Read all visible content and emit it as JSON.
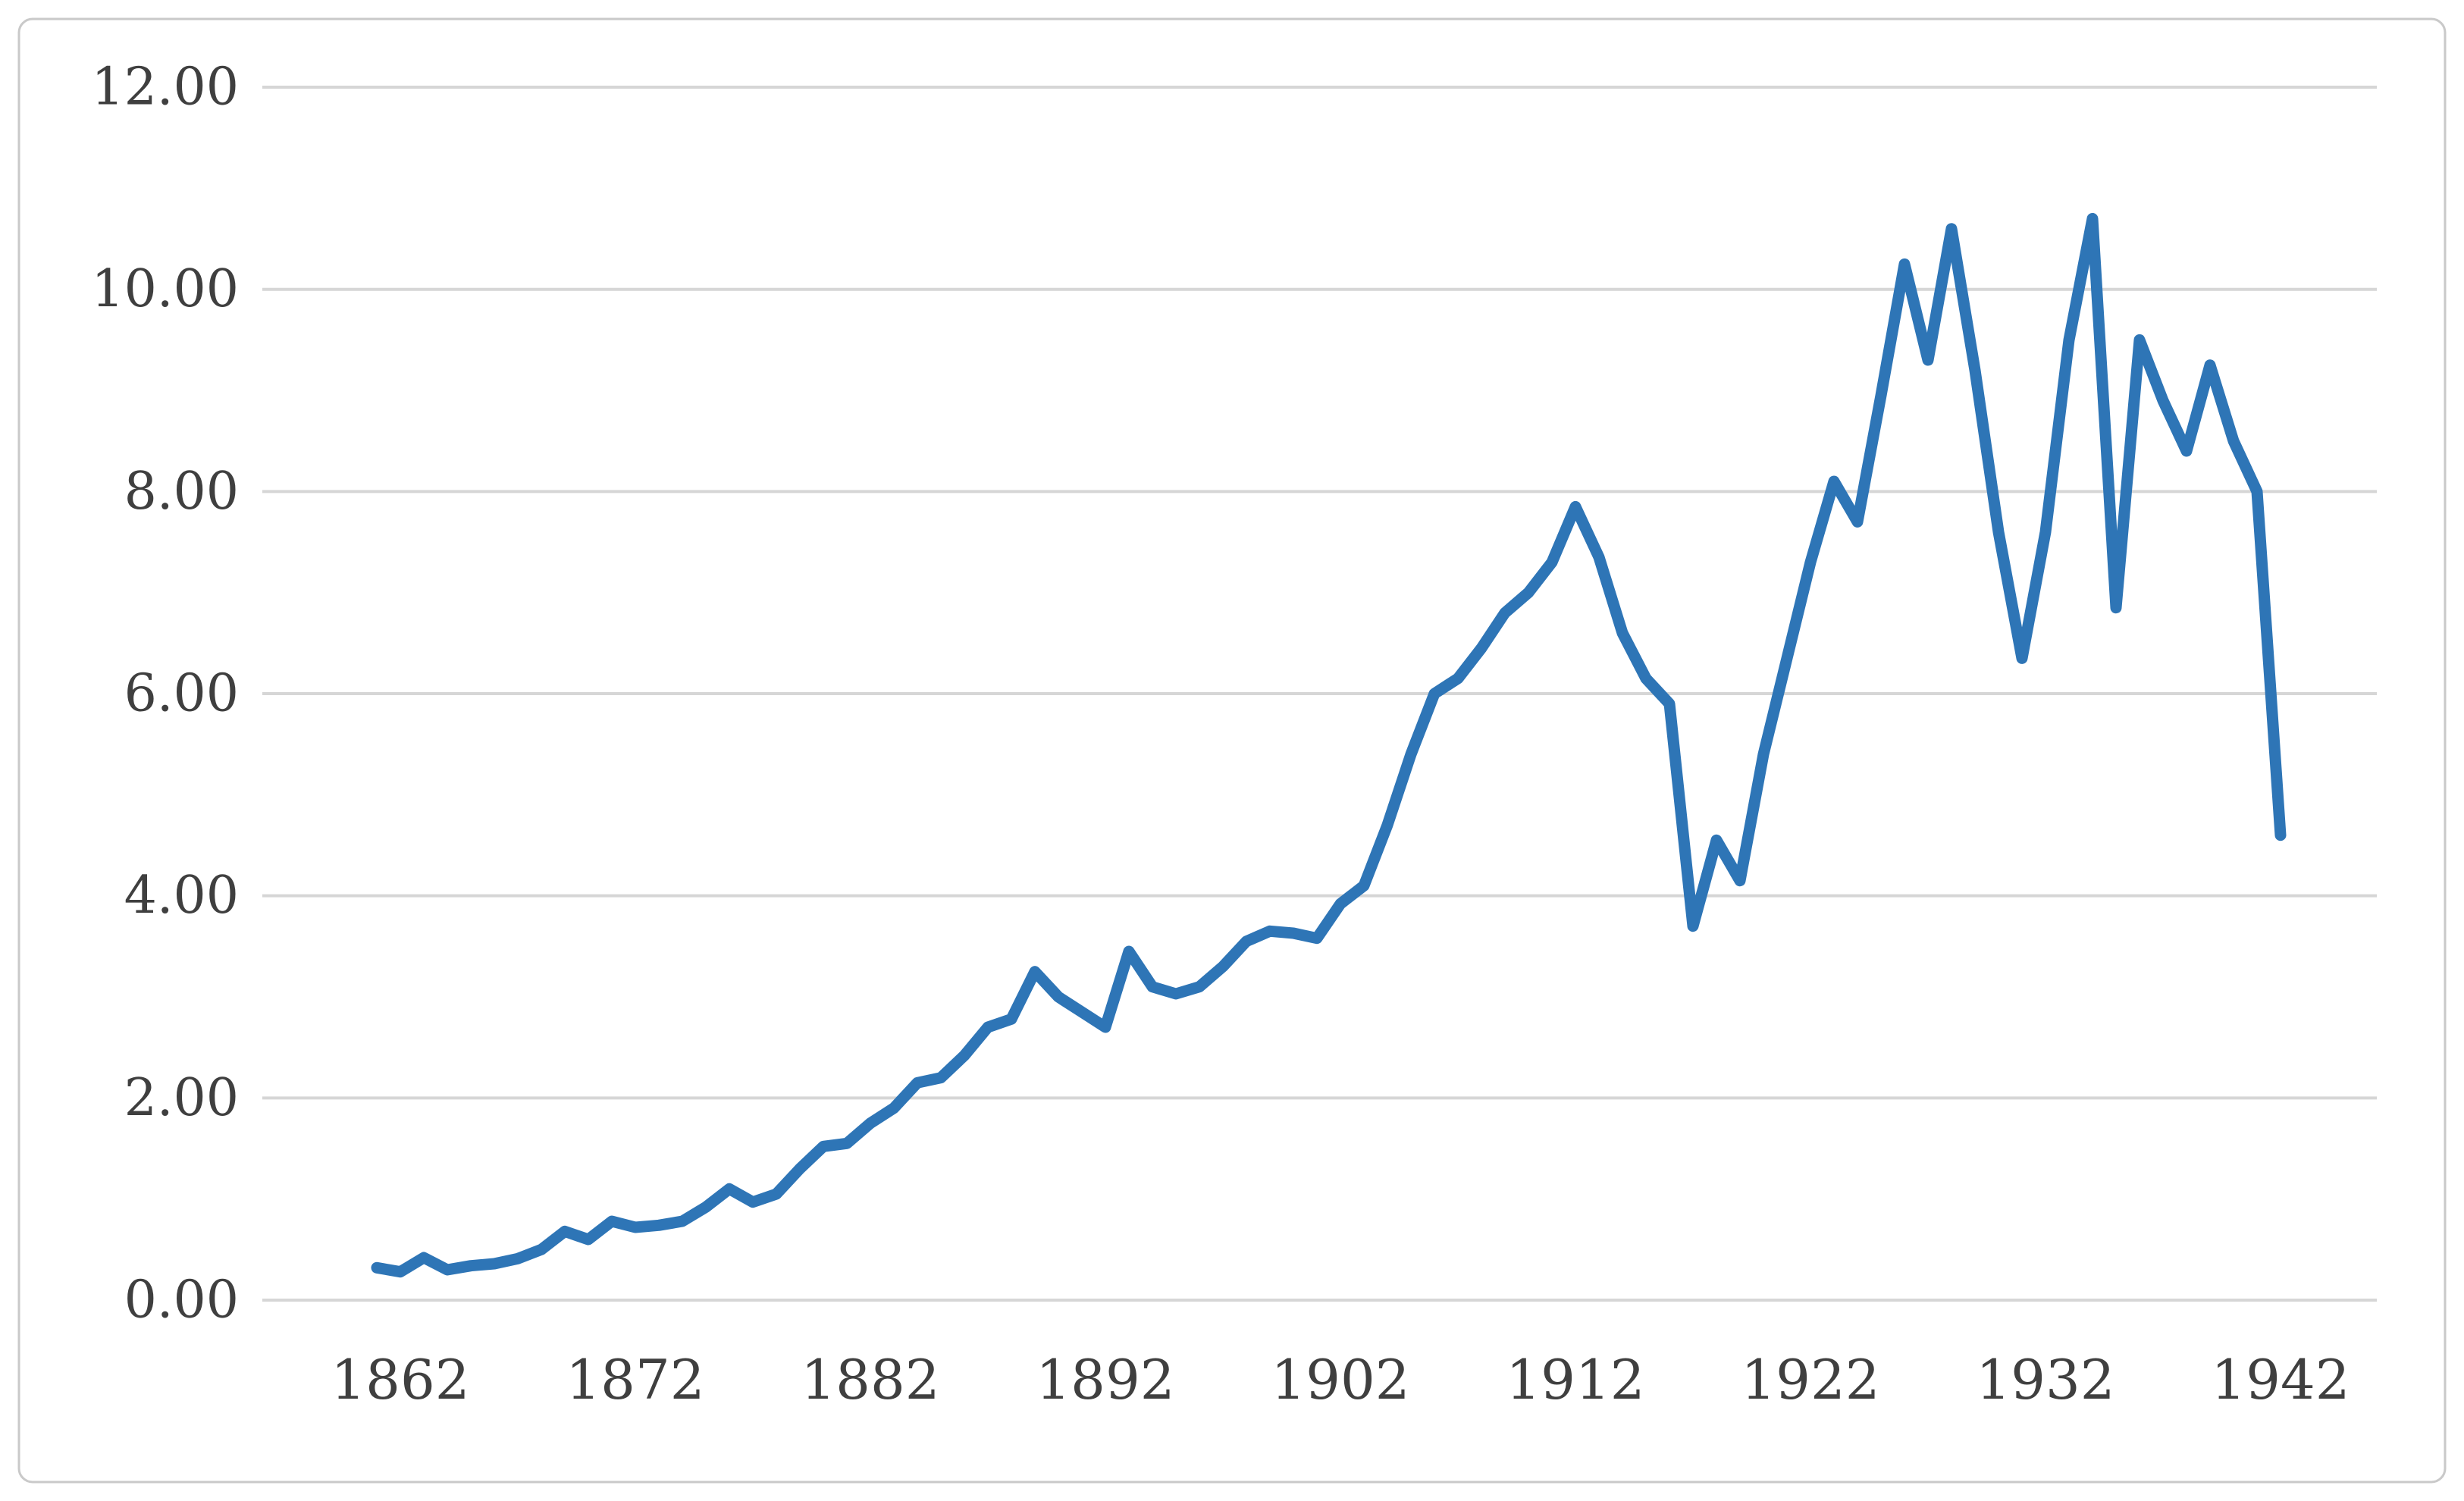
{
  "chart_data": {
    "type": "line",
    "title": "",
    "xlabel": "",
    "ylabel": "",
    "legend_position": "none",
    "grid": true,
    "ylim": [
      0,
      12
    ],
    "ytick_values": [
      0,
      2,
      4,
      6,
      8,
      10,
      12
    ],
    "ytick_labels": [
      "0.00",
      "2.00",
      "4.00",
      "6.00",
      "8.00",
      "10.00",
      "12.00"
    ],
    "xtick_values": [
      1862,
      1872,
      1882,
      1892,
      1902,
      1912,
      1922,
      1932,
      1942
    ],
    "xtick_labels": [
      "1862",
      "1872",
      "1882",
      "1892",
      "1902",
      "1912",
      "1922",
      "1932",
      "1942"
    ],
    "x": [
      1861,
      1862,
      1863,
      1864,
      1865,
      1866,
      1867,
      1868,
      1869,
      1870,
      1871,
      1872,
      1873,
      1874,
      1875,
      1876,
      1877,
      1878,
      1879,
      1880,
      1881,
      1882,
      1883,
      1884,
      1885,
      1886,
      1887,
      1888,
      1889,
      1890,
      1891,
      1892,
      1893,
      1894,
      1895,
      1896,
      1897,
      1898,
      1899,
      1900,
      1901,
      1902,
      1903,
      1904,
      1905,
      1906,
      1907,
      1908,
      1909,
      1910,
      1911,
      1912,
      1913,
      1914,
      1915,
      1916,
      1917,
      1918,
      1919,
      1920,
      1921,
      1922,
      1923,
      1924,
      1925,
      1926,
      1927,
      1928,
      1929,
      1930,
      1931,
      1932,
      1933,
      1934,
      1935,
      1936,
      1937,
      1938,
      1939,
      1940,
      1941,
      1942
    ],
    "series": [
      {
        "name": "value",
        "values": [
          0.32,
          0.28,
          0.42,
          0.3,
          0.34,
          0.36,
          0.41,
          0.5,
          0.68,
          0.6,
          0.78,
          0.72,
          0.74,
          0.78,
          0.92,
          1.1,
          0.97,
          1.05,
          1.3,
          1.52,
          1.55,
          1.75,
          1.9,
          2.15,
          2.2,
          2.42,
          2.7,
          2.78,
          3.25,
          3.0,
          2.85,
          2.7,
          3.45,
          3.1,
          3.03,
          3.1,
          3.3,
          3.55,
          3.65,
          3.63,
          3.58,
          3.92,
          4.1,
          4.7,
          5.4,
          6.0,
          6.15,
          6.45,
          6.8,
          7.0,
          7.3,
          7.85,
          7.35,
          6.6,
          6.15,
          5.9,
          3.7,
          4.55,
          4.15,
          5.4,
          6.35,
          7.3,
          8.1,
          7.7,
          8.95,
          10.25,
          9.3,
          10.6,
          9.2,
          7.6,
          6.35,
          7.6,
          9.5,
          10.7,
          6.85,
          9.5,
          8.9,
          8.4,
          9.25,
          8.5,
          8.0,
          4.6
        ]
      }
    ],
    "line_color": "#2E75B6",
    "gridline_color": "#D6D6D6",
    "text_color": "#3F3F3F",
    "background_color": "#FFFFFF",
    "border_color": "#C9C9C9"
  }
}
